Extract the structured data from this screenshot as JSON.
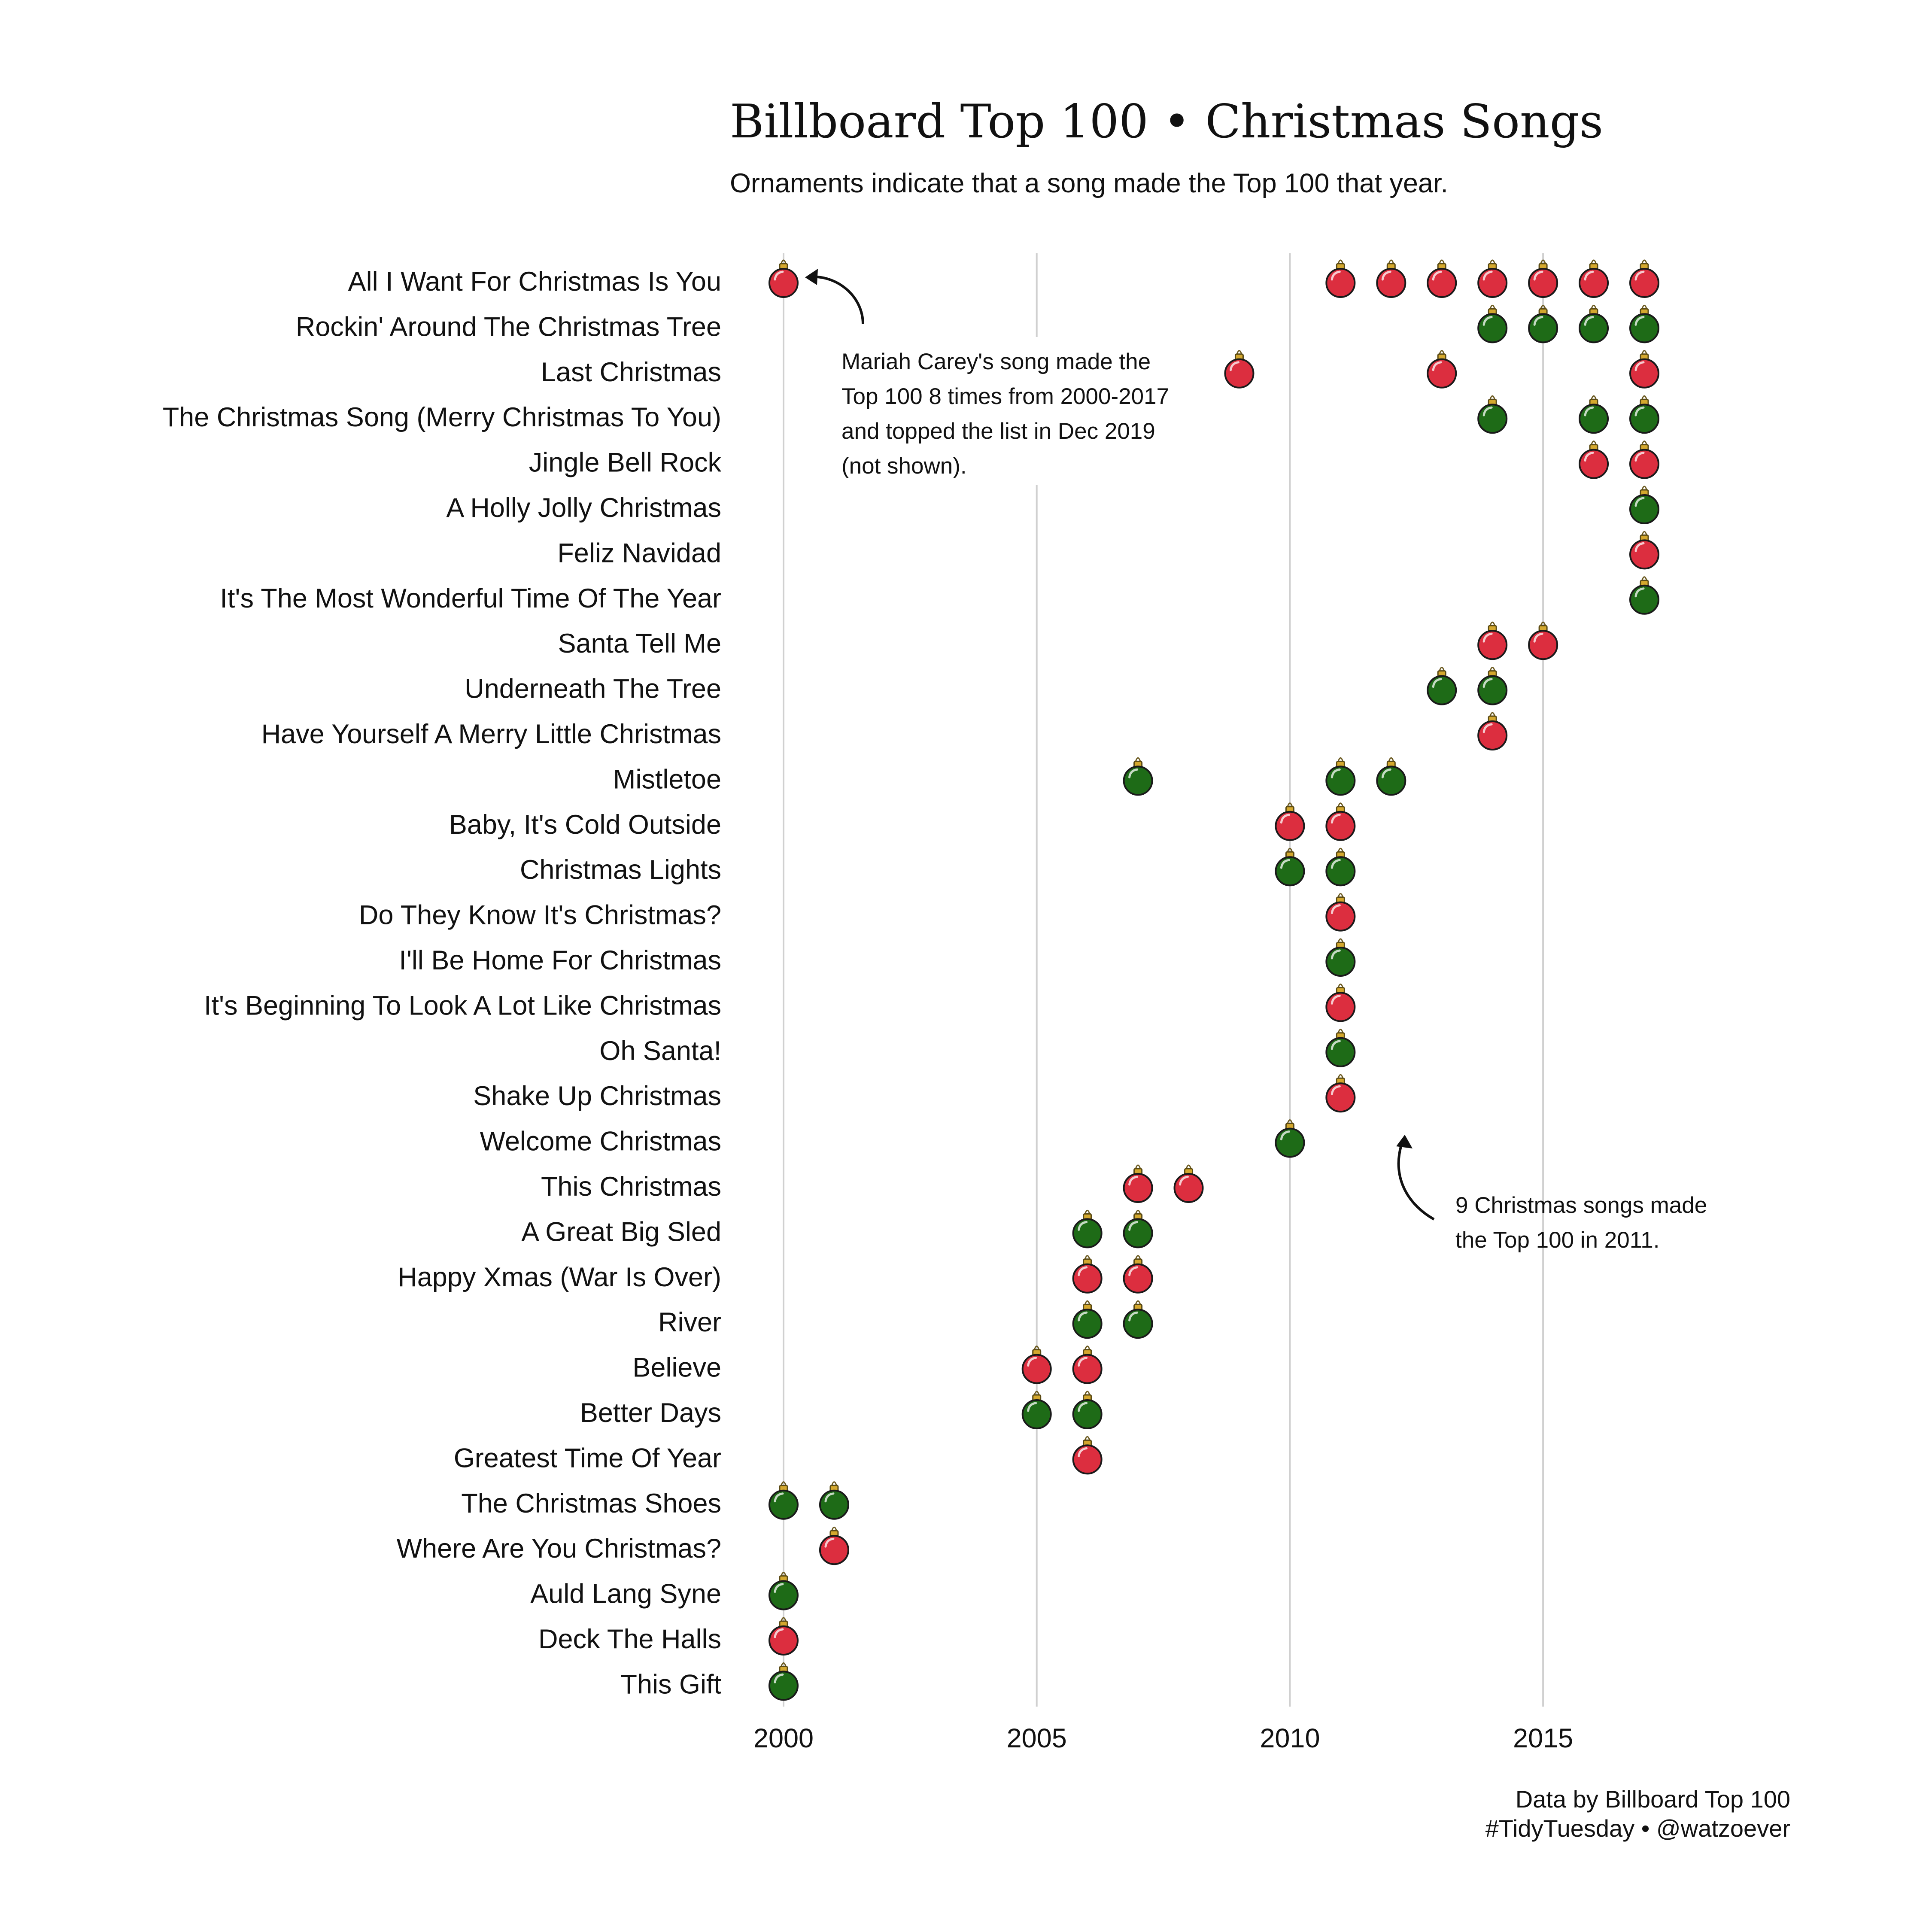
{
  "chart_data": {
    "type": "scatter",
    "title": "Billboard Top 100 • Christmas Songs",
    "subtitle": "Ornaments indicate that a song made the Top 100 that year.",
    "xlabel": "",
    "ylabel": "",
    "xlim": [
      2000,
      2017
    ],
    "x_ticks": [
      2000,
      2005,
      2010,
      2015
    ],
    "x_tick_labels": [
      "2000",
      "2005",
      "2010",
      "2015"
    ],
    "grid": "vertical major gridlines",
    "ornament_colors": {
      "red": "#dc2e3f",
      "green": "#1e6b17",
      "cap": "#d4a82e"
    },
    "songs": [
      {
        "name": "All I Want For Christmas Is You",
        "color": "red",
        "years": [
          2000,
          2011,
          2012,
          2013,
          2014,
          2015,
          2016,
          2017
        ]
      },
      {
        "name": "Rockin' Around The Christmas Tree",
        "color": "green",
        "years": [
          2014,
          2015,
          2016,
          2017
        ]
      },
      {
        "name": "Last Christmas",
        "color": "red",
        "years": [
          2009,
          2013,
          2017
        ]
      },
      {
        "name": "The Christmas Song (Merry Christmas To You)",
        "color": "green",
        "years": [
          2014,
          2016,
          2017
        ]
      },
      {
        "name": "Jingle Bell Rock",
        "color": "red",
        "years": [
          2016,
          2017
        ]
      },
      {
        "name": "A Holly Jolly Christmas",
        "color": "green",
        "years": [
          2017
        ]
      },
      {
        "name": "Feliz Navidad",
        "color": "red",
        "years": [
          2017
        ]
      },
      {
        "name": "It's The Most Wonderful Time Of The Year",
        "color": "green",
        "years": [
          2017
        ]
      },
      {
        "name": "Santa Tell Me",
        "color": "red",
        "years": [
          2014,
          2015
        ]
      },
      {
        "name": "Underneath The Tree",
        "color": "green",
        "years": [
          2013,
          2014
        ]
      },
      {
        "name": "Have Yourself A Merry Little Christmas",
        "color": "red",
        "years": [
          2014
        ]
      },
      {
        "name": "Mistletoe",
        "color": "green",
        "years": [
          2007,
          2011,
          2012
        ]
      },
      {
        "name": "Baby, It's Cold Outside",
        "color": "red",
        "years": [
          2010,
          2011
        ]
      },
      {
        "name": "Christmas Lights",
        "color": "green",
        "years": [
          2010,
          2011
        ]
      },
      {
        "name": "Do They Know It's Christmas?",
        "color": "red",
        "years": [
          2011
        ]
      },
      {
        "name": "I'll Be Home For Christmas",
        "color": "green",
        "years": [
          2011
        ]
      },
      {
        "name": "It's Beginning To Look A Lot Like Christmas",
        "color": "red",
        "years": [
          2011
        ]
      },
      {
        "name": "Oh Santa!",
        "color": "green",
        "years": [
          2011
        ]
      },
      {
        "name": "Shake Up Christmas",
        "color": "red",
        "years": [
          2011
        ]
      },
      {
        "name": "Welcome Christmas",
        "color": "green",
        "years": [
          2010
        ]
      },
      {
        "name": "This Christmas",
        "color": "red",
        "years": [
          2007,
          2008
        ]
      },
      {
        "name": "A Great Big Sled",
        "color": "green",
        "years": [
          2006,
          2007
        ]
      },
      {
        "name": "Happy Xmas (War Is Over)",
        "color": "red",
        "years": [
          2006,
          2007
        ]
      },
      {
        "name": "River",
        "color": "green",
        "years": [
          2006,
          2007
        ]
      },
      {
        "name": "Believe",
        "color": "red",
        "years": [
          2005,
          2006
        ]
      },
      {
        "name": "Better Days",
        "color": "green",
        "years": [
          2005,
          2006
        ]
      },
      {
        "name": "Greatest Time Of Year",
        "color": "red",
        "years": [
          2006
        ]
      },
      {
        "name": "The Christmas Shoes",
        "color": "green",
        "years": [
          2000,
          2001
        ]
      },
      {
        "name": "Where Are You Christmas?",
        "color": "red",
        "years": [
          2001
        ]
      },
      {
        "name": "Auld Lang Syne",
        "color": "green",
        "years": [
          2000
        ]
      },
      {
        "name": "Deck The Halls",
        "color": "red",
        "years": [
          2000
        ]
      },
      {
        "name": "This Gift",
        "color": "green",
        "years": [
          2000
        ]
      }
    ],
    "annotations": [
      {
        "name": "mariah",
        "lines": [
          "Mariah Carey's song made the",
          "Top 100 8 times from 2000-2017",
          "and topped the list in Dec 2019",
          "(not shown)."
        ],
        "points_to": {
          "song": "All I Want For Christmas Is You",
          "year": 2000
        }
      },
      {
        "name": "year-2011",
        "lines": [
          "9 Christmas songs made",
          "the Top 100 in 2011."
        ],
        "points_to": {
          "song": "Shake Up Christmas",
          "year": 2011
        }
      }
    ],
    "caption": [
      "Data by Billboard Top 100",
      "#TidyTuesday • @watzoever"
    ]
  }
}
